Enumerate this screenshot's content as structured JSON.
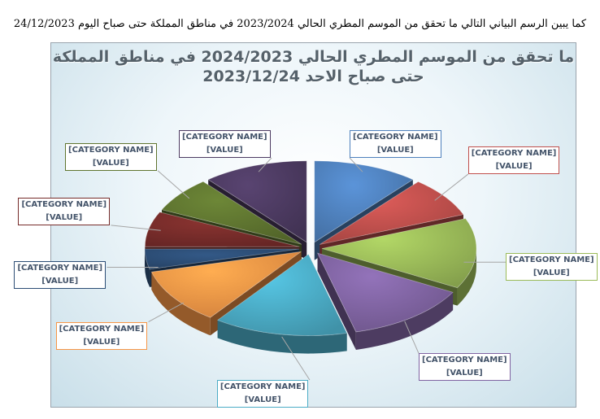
{
  "caption": "كما يبين الرسم البياني التالي ما تحقق من الموسم المطري الحالي 2023/2024 في مناطق المملكة حتى صباح اليوم 24/12/2023",
  "chart_data": {
    "type": "pie",
    "style": "3d-exploded",
    "title_line1": "ما تحقق من الموسم المطري الحالي 2024/2023 في مناطق المملكة",
    "title_line2": "حتى صباح الاحد 2023/12/24",
    "slices": [
      {
        "category": "[CATEGORY NAME]",
        "value_label": "[VALUE]",
        "value": 11,
        "color": "#4f81bd",
        "border": "#4f81bd"
      },
      {
        "category": "[CATEGORY NAME]",
        "value_label": "[VALUE]",
        "value": 8,
        "color": "#c0504d",
        "border": "#c0504d"
      },
      {
        "category": "[CATEGORY NAME]",
        "value_label": "[VALUE]",
        "value": 14,
        "color": "#9bbb59",
        "border": "#9bbb59"
      },
      {
        "category": "[CATEGORY NAME]",
        "value_label": "[VALUE]",
        "value": 13,
        "color": "#8064a2",
        "border": "#8064a2"
      },
      {
        "category": "[CATEGORY NAME]",
        "value_label": "[VALUE]",
        "value": 14,
        "color": "#4bacc6",
        "border": "#4bacc6"
      },
      {
        "category": "[CATEGORY NAME]",
        "value_label": "[VALUE]",
        "value": 11,
        "color": "#f79646",
        "border": "#f79646"
      },
      {
        "category": "[CATEGORY NAME]",
        "value_label": "[VALUE]",
        "value": 4,
        "color": "#2c4d75",
        "border": "#2c4d75"
      },
      {
        "category": "[CATEGORY NAME]",
        "value_label": "[VALUE]",
        "value": 7,
        "color": "#772c2a",
        "border": "#772c2a"
      },
      {
        "category": "[CATEGORY NAME]",
        "value_label": "[VALUE]",
        "value": 7,
        "color": "#5f7530",
        "border": "#5f7530"
      },
      {
        "category": "[CATEGORY NAME]",
        "value_label": "[VALUE]",
        "value": 11,
        "color": "#4d3b62",
        "border": "#4d3b62"
      }
    ]
  }
}
